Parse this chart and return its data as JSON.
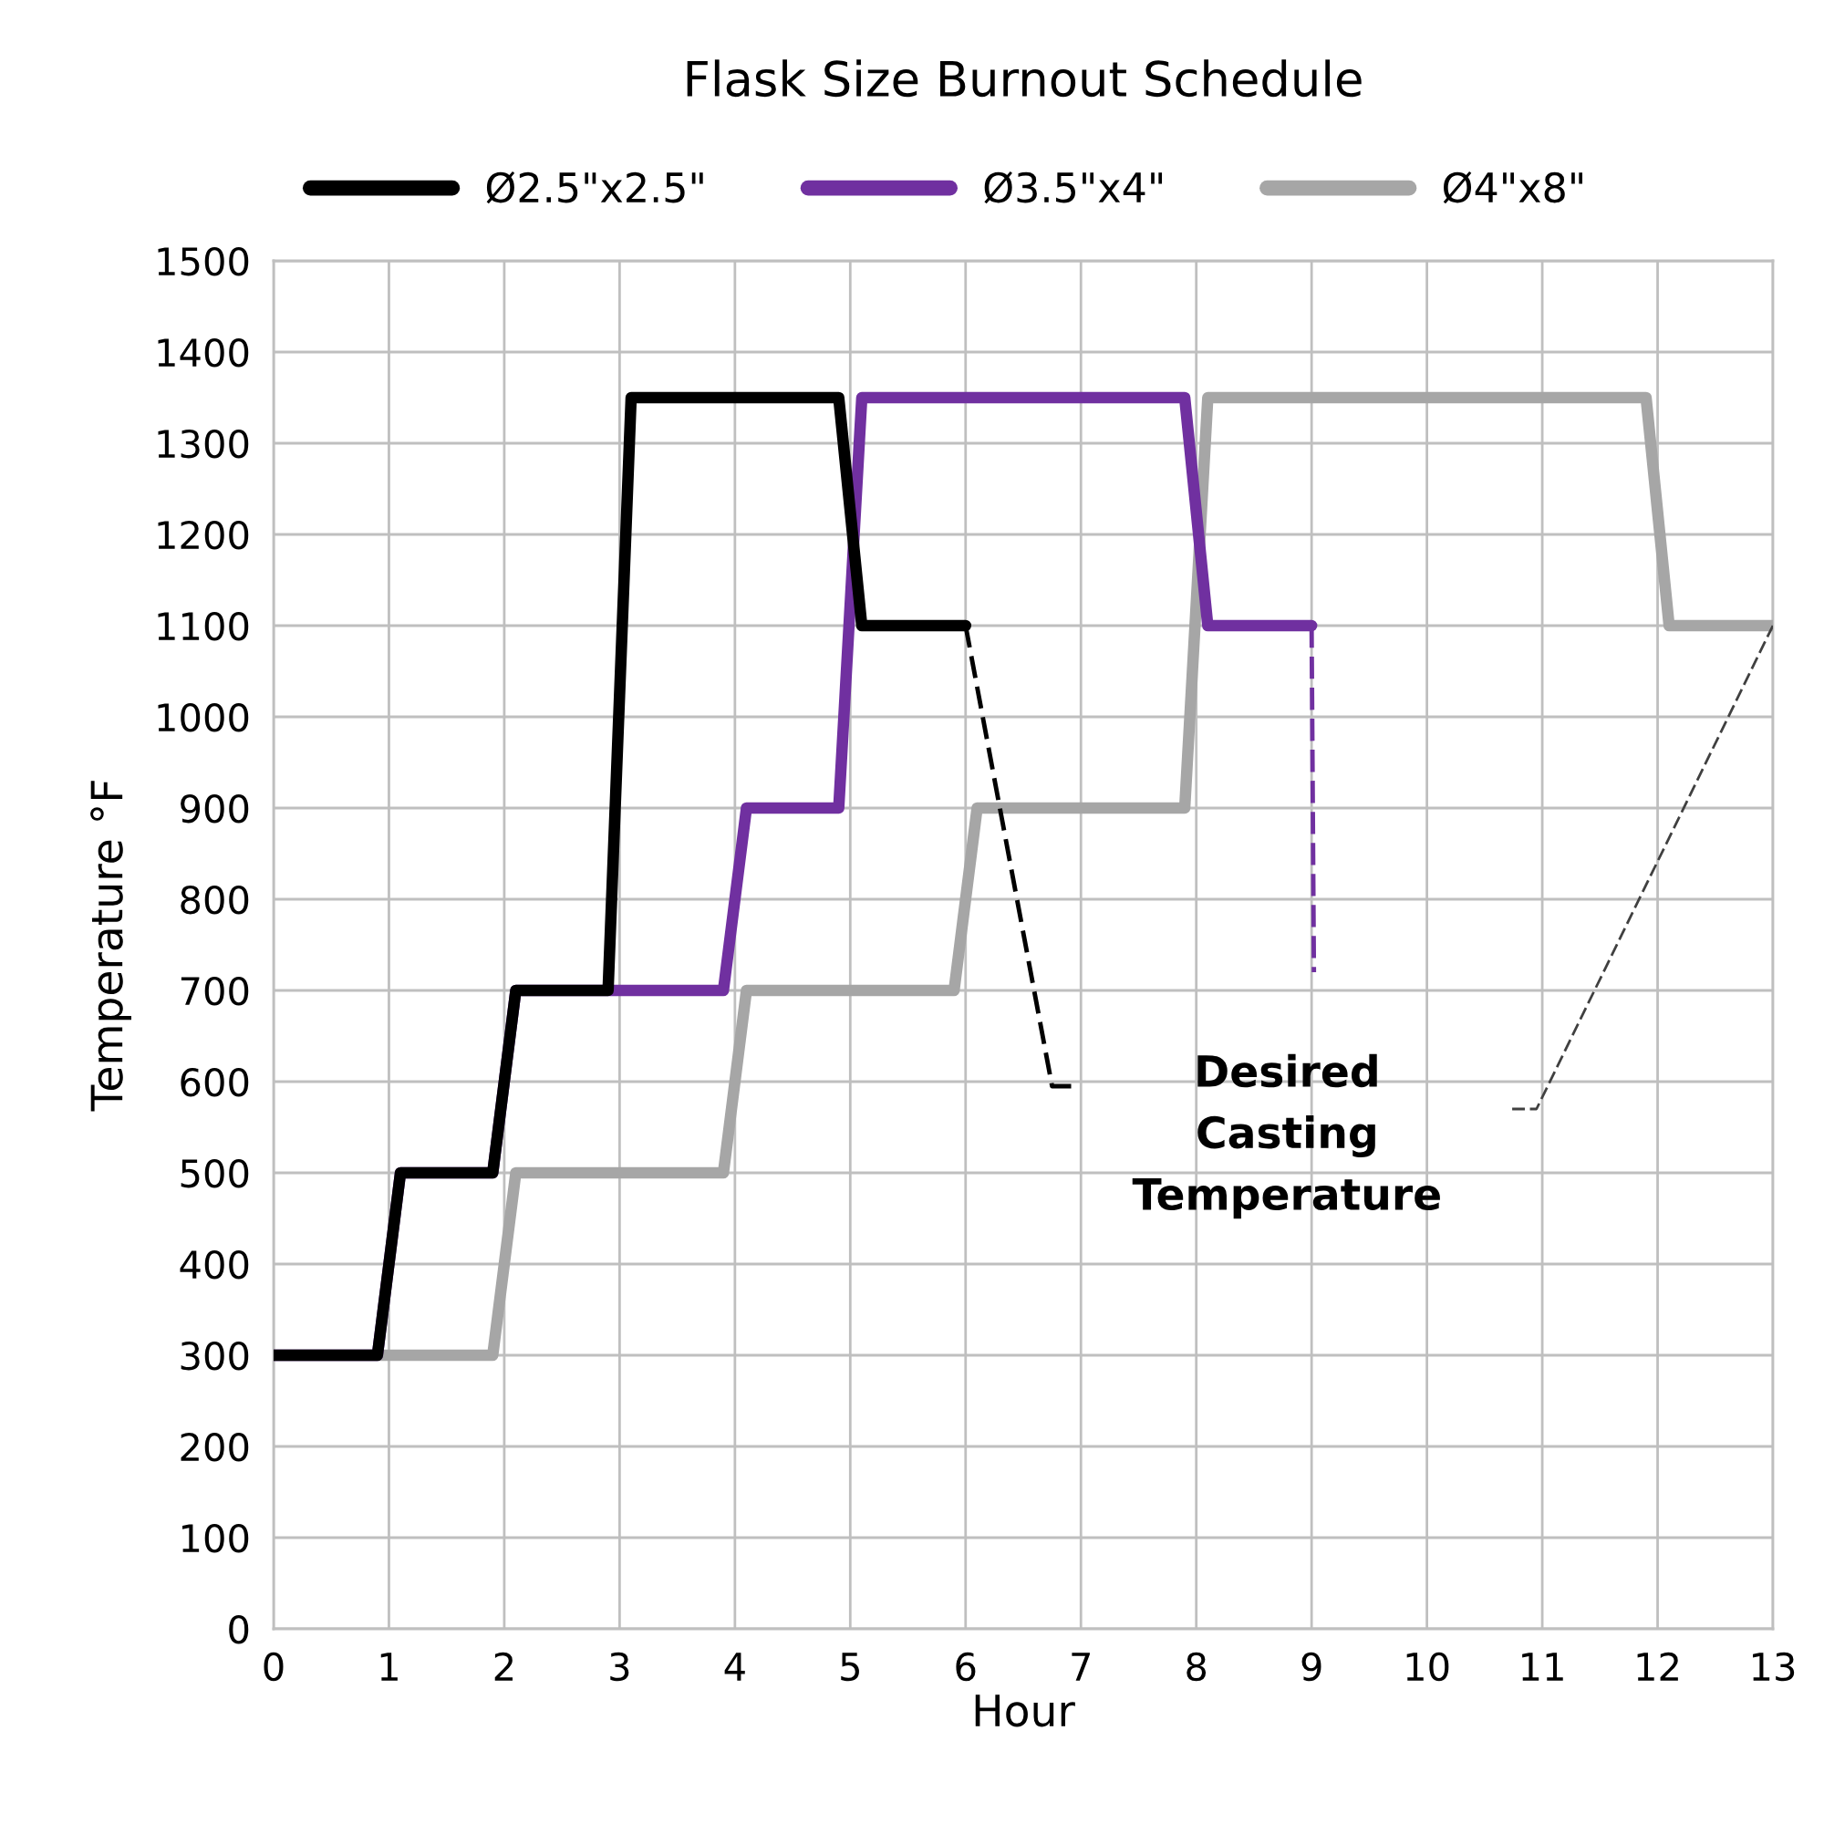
{
  "chart_data": {
    "type": "line",
    "title": "Flask Size Burnout Schedule",
    "xlabel": "Hour",
    "ylabel": "Temperature °F",
    "xlim": [
      0,
      13
    ],
    "xticks": [
      0,
      1,
      2,
      3,
      4,
      5,
      6,
      7,
      8,
      9,
      10,
      11,
      12,
      13
    ],
    "ylim": [
      0,
      1500
    ],
    "yticks": [
      0,
      100,
      200,
      300,
      400,
      500,
      600,
      700,
      800,
      900,
      1000,
      1100,
      1200,
      1300,
      1400,
      1500
    ],
    "grid": true,
    "legend": "top",
    "marker": "none",
    "line_style": "solid",
    "series": [
      {
        "name": "Ø2.5\"x2.5\"",
        "color": "#000000",
        "x": [
          0,
          0.9,
          1.1,
          1.9,
          2.1,
          2.9,
          3.1,
          4.9,
          5.1,
          6
        ],
        "values": [
          300,
          300,
          500,
          500,
          700,
          700,
          1350,
          1350,
          1100,
          1100
        ]
      },
      {
        "name": "Ø3.5\"x4\"",
        "color": "#7030a0",
        "x": [
          0,
          0.9,
          1.1,
          1.9,
          2.1,
          3.9,
          4.1,
          4.9,
          5.1,
          7.9,
          8.1,
          9
        ],
        "values": [
          300,
          300,
          500,
          500,
          700,
          700,
          900,
          900,
          1350,
          1350,
          1100,
          1100
        ]
      },
      {
        "name": "Ø4\"x8\"",
        "color": "#a6a6a6",
        "x": [
          0,
          1.9,
          2.1,
          3.9,
          4.1,
          5.9,
          6.1,
          7.9,
          8.1,
          11.9,
          12.1,
          13
        ],
        "values": [
          300,
          300,
          500,
          500,
          700,
          700,
          900,
          900,
          1350,
          1350,
          1100,
          1100
        ]
      },
      {
        "color": "#000000",
        "line_style": "dashed",
        "x": [
          6,
          6.75,
          6.95
        ],
        "values": [
          1100,
          595,
          595
        ]
      },
      {
        "color": "#7030a0",
        "line_style": "dashed",
        "x": [
          9,
          9.02
        ],
        "values": [
          1100,
          720
        ]
      },
      {
        "color": "#404040",
        "line_style": "dashed",
        "x": [
          13,
          10.95,
          10.7
        ],
        "values": [
          1100,
          570,
          570
        ]
      }
    ],
    "annotations": [
      "Desired\nCasting\nTemperature"
    ]
  }
}
